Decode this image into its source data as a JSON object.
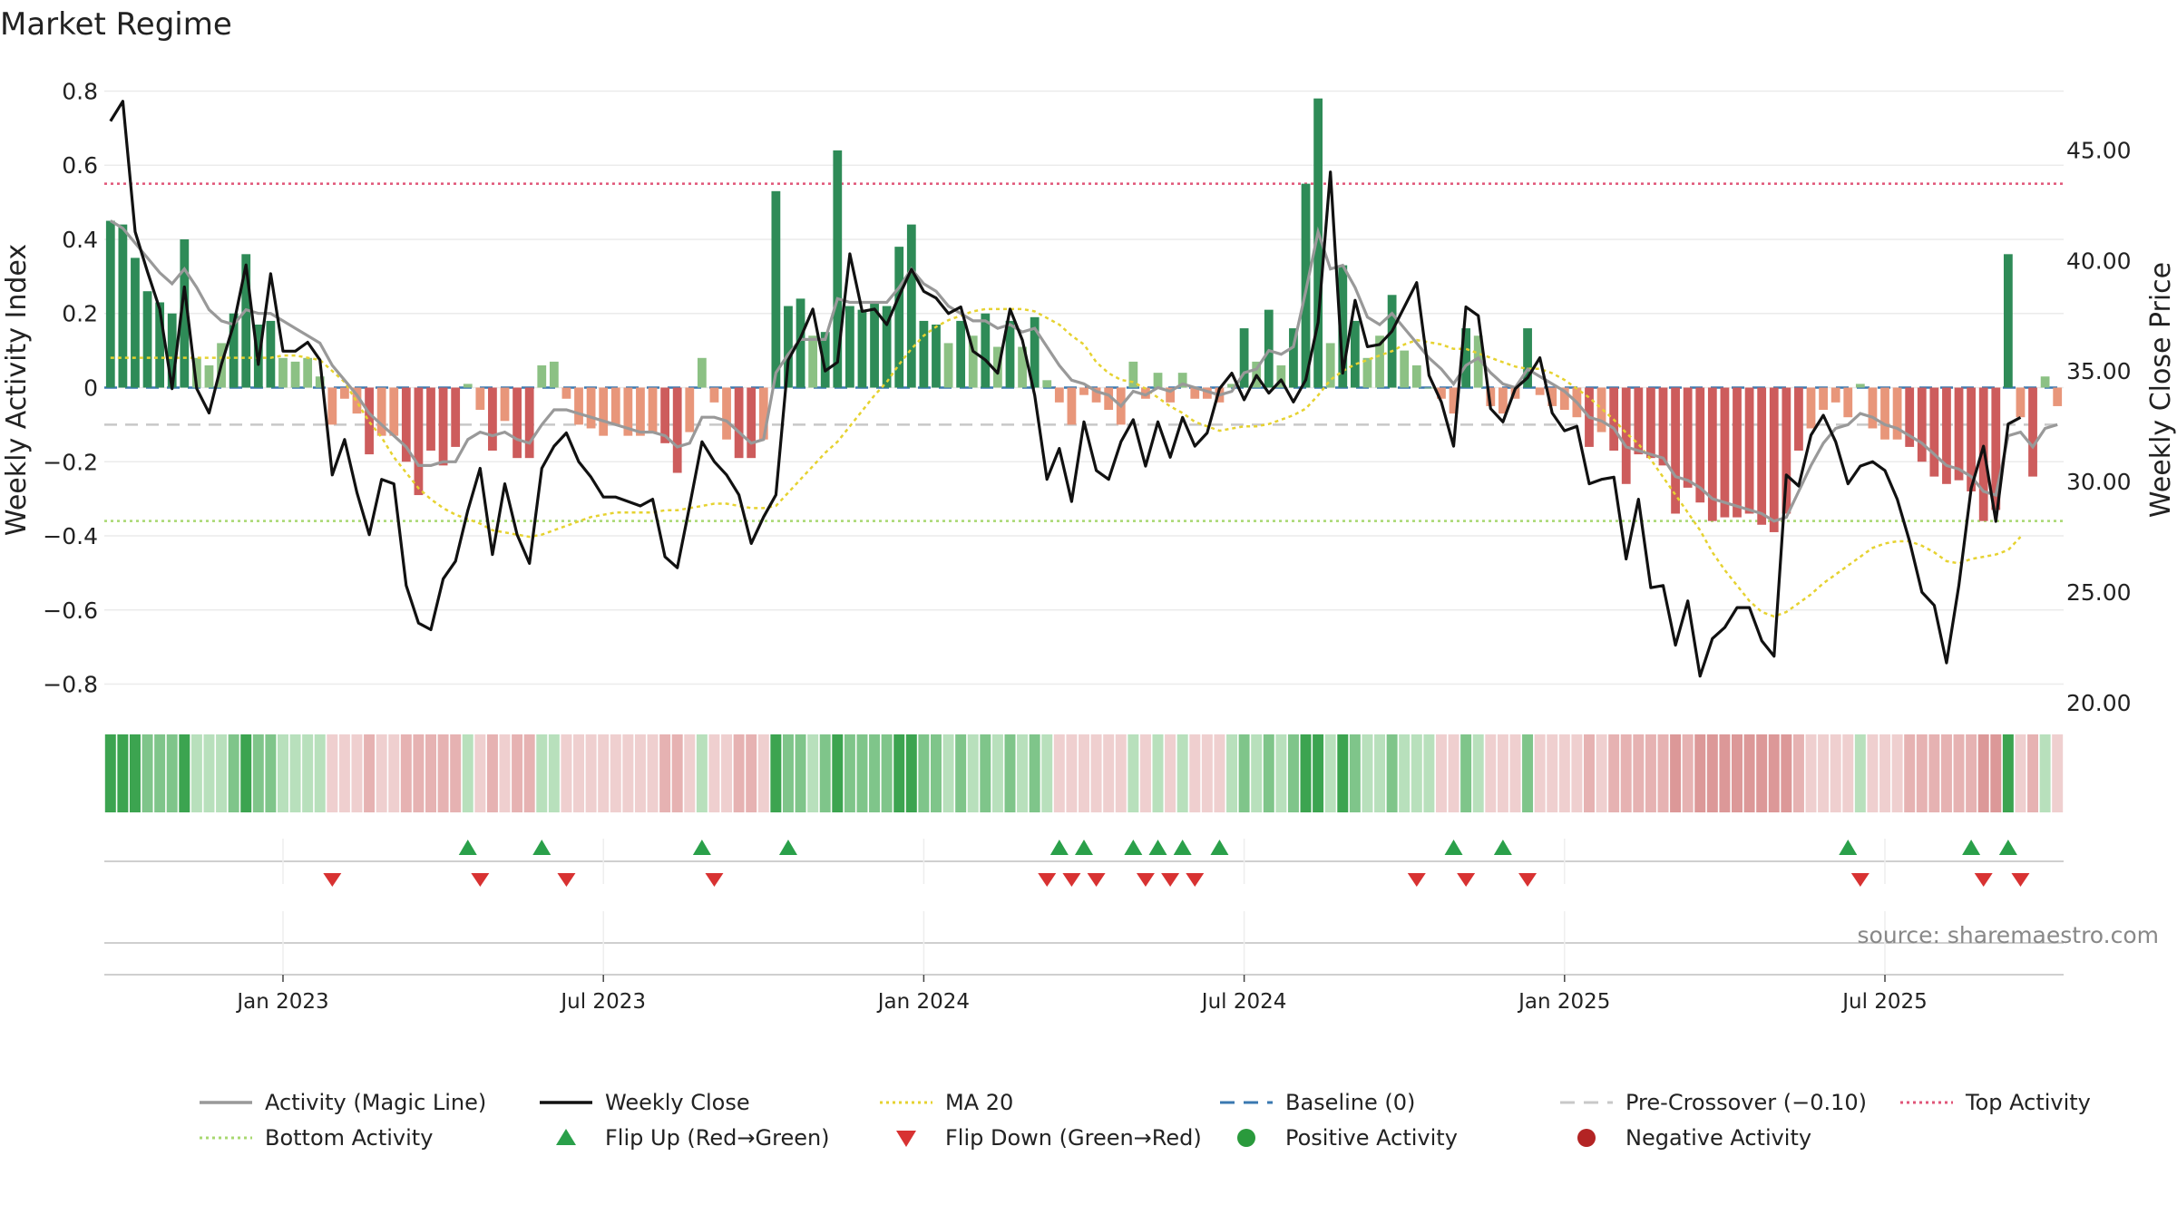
{
  "chart_data": {
    "type": "bar+line",
    "title": "Market Regime",
    "ylabel_left": "Weekly Activity Index",
    "ylabel_right": "Weekly Close Price",
    "ylim_left": [
      -0.85,
      0.85
    ],
    "ylim_right": [
      20,
      48.5
    ],
    "yticks_left": [
      "0.8",
      "0.6",
      "0.4",
      "0.2",
      "0",
      "−0.2",
      "−0.4",
      "−0.6",
      "−0.8"
    ],
    "yticks_left_values": [
      0.8,
      0.6,
      0.4,
      0.2,
      0,
      -0.2,
      -0.4,
      -0.6,
      -0.8
    ],
    "yticks_right": [
      "45.00",
      "40.00",
      "35.00",
      "30.00",
      "25.00",
      "20.00"
    ],
    "yticks_right_values": [
      45,
      40,
      35,
      30,
      25,
      20
    ],
    "xticks": [
      "Jan 2023",
      "Jul 2023",
      "Jan 2024",
      "Jul 2024",
      "Jan 2025",
      "Jul 2025"
    ],
    "xticks_week_index": [
      14,
      40,
      66,
      92,
      118,
      144
    ],
    "levels": {
      "top_activity": 0.55,
      "bottom_activity": -0.36,
      "pre_crossover": -0.1,
      "baseline": 0
    },
    "series": [
      {
        "name": "Weekly Activity Index",
        "kind": "bar",
        "values": [
          0.45,
          0.44,
          0.35,
          0.26,
          0.23,
          0.2,
          0.4,
          0.08,
          0.06,
          0.12,
          0.2,
          0.36,
          0.17,
          0.18,
          0.08,
          0.07,
          0.08,
          0.03,
          -0.1,
          -0.03,
          -0.07,
          -0.18,
          -0.13,
          -0.13,
          -0.2,
          -0.29,
          -0.17,
          -0.21,
          -0.16,
          0.01,
          -0.06,
          -0.17,
          -0.09,
          -0.19,
          -0.19,
          0.06,
          0.07,
          -0.03,
          -0.1,
          -0.11,
          -0.13,
          -0.1,
          -0.13,
          -0.13,
          -0.12,
          -0.15,
          -0.23,
          -0.12,
          0.08,
          -0.04,
          -0.14,
          -0.19,
          -0.19,
          -0.14,
          0.53,
          0.22,
          0.24,
          0.14,
          0.15,
          0.64,
          0.22,
          0.21,
          0.23,
          0.22,
          0.38,
          0.44,
          0.18,
          0.17,
          0.12,
          0.18,
          0.14,
          0.2,
          0.11,
          0.18,
          0.11,
          0.19,
          0.02,
          -0.04,
          -0.1,
          -0.02,
          -0.04,
          -0.06,
          -0.1,
          0.07,
          -0.03,
          0.04,
          -0.04,
          0.04,
          -0.03,
          -0.03,
          -0.04,
          0.01,
          0.16,
          0.07,
          0.21,
          0.06,
          0.16,
          0.55,
          0.78,
          0.12,
          0.33,
          0.18,
          0.08,
          0.14,
          0.25,
          0.1,
          0.06,
          0.0,
          -0.03,
          -0.07,
          0.16,
          0.14,
          -0.05,
          -0.07,
          -0.03,
          0.16,
          -0.02,
          -0.05,
          -0.06,
          -0.08,
          -0.16,
          -0.12,
          -0.17,
          -0.26,
          -0.18,
          -0.19,
          -0.21,
          -0.34,
          -0.27,
          -0.31,
          -0.36,
          -0.35,
          -0.35,
          -0.34,
          -0.37,
          -0.39,
          -0.34,
          -0.17,
          -0.11,
          -0.06,
          -0.04,
          -0.08,
          0.01,
          -0.11,
          -0.14,
          -0.14,
          -0.16,
          -0.2,
          -0.24,
          -0.26,
          -0.25,
          -0.28,
          -0.36,
          -0.33,
          0.36,
          -0.08,
          -0.24,
          0.03,
          -0.05
        ]
      },
      {
        "name": "Activity (Magic Line)",
        "kind": "line",
        "values": [
          0.45,
          0.43,
          0.39,
          0.35,
          0.31,
          0.28,
          0.32,
          0.27,
          0.21,
          0.18,
          0.17,
          0.21,
          0.2,
          0.2,
          0.18,
          0.16,
          0.14,
          0.12,
          0.06,
          0.02,
          -0.02,
          -0.07,
          -0.1,
          -0.13,
          -0.16,
          -0.21,
          -0.21,
          -0.2,
          -0.2,
          -0.14,
          -0.12,
          -0.13,
          -0.12,
          -0.14,
          -0.15,
          -0.1,
          -0.06,
          -0.06,
          -0.07,
          -0.08,
          -0.09,
          -0.1,
          -0.11,
          -0.12,
          -0.12,
          -0.13,
          -0.16,
          -0.15,
          -0.08,
          -0.08,
          -0.09,
          -0.12,
          -0.15,
          -0.14,
          0.04,
          0.09,
          0.13,
          0.13,
          0.13,
          0.24,
          0.23,
          0.23,
          0.23,
          0.23,
          0.27,
          0.32,
          0.28,
          0.26,
          0.22,
          0.2,
          0.18,
          0.18,
          0.16,
          0.17,
          0.15,
          0.16,
          0.11,
          0.06,
          0.02,
          0.01,
          -0.01,
          -0.02,
          -0.05,
          -0.01,
          -0.02,
          0.0,
          -0.01,
          0.01,
          0.0,
          -0.01,
          -0.02,
          -0.01,
          0.04,
          0.05,
          0.1,
          0.09,
          0.11,
          0.26,
          0.42,
          0.32,
          0.33,
          0.27,
          0.19,
          0.17,
          0.2,
          0.16,
          0.12,
          0.08,
          0.05,
          0.01,
          0.06,
          0.08,
          0.04,
          0.01,
          0.0,
          0.05,
          0.03,
          0.01,
          -0.01,
          -0.04,
          -0.08,
          -0.09,
          -0.11,
          -0.16,
          -0.17,
          -0.18,
          -0.19,
          -0.24,
          -0.25,
          -0.27,
          -0.3,
          -0.31,
          -0.32,
          -0.33,
          -0.34,
          -0.36,
          -0.35,
          -0.28,
          -0.21,
          -0.15,
          -0.11,
          -0.1,
          -0.07,
          -0.08,
          -0.1,
          -0.11,
          -0.13,
          -0.15,
          -0.18,
          -0.21,
          -0.22,
          -0.24,
          -0.28,
          -0.29,
          -0.13,
          -0.12,
          -0.16,
          -0.11,
          -0.1
        ]
      },
      {
        "name": "Weekly Close",
        "kind": "line",
        "axis": "right",
        "values": [
          46.3,
          47.2,
          41.3,
          39.5,
          37.8,
          34.2,
          38.8,
          34.2,
          33.1,
          35.3,
          37.1,
          39.8,
          35.3,
          39.4,
          35.9,
          35.9,
          36.3,
          35.5,
          30.3,
          31.9,
          29.5,
          27.6,
          30.1,
          29.9,
          25.3,
          23.6,
          23.3,
          25.6,
          26.4,
          28.7,
          30.6,
          26.7,
          29.9,
          27.6,
          26.3,
          30.6,
          31.6,
          32.2,
          30.9,
          30.2,
          29.3,
          29.3,
          29.1,
          28.9,
          29.2,
          26.6,
          26.1,
          28.9,
          31.8,
          30.9,
          30.3,
          29.4,
          27.2,
          28.4,
          29.4,
          35.5,
          36.5,
          37.8,
          35.0,
          35.4,
          40.3,
          37.7,
          37.8,
          37.1,
          38.4,
          39.6,
          38.6,
          38.3,
          37.6,
          37.9,
          35.9,
          35.5,
          34.9,
          37.8,
          36.4,
          33.9,
          30.1,
          31.5,
          29.1,
          32.7,
          30.5,
          30.1,
          31.8,
          32.8,
          30.7,
          32.7,
          31.1,
          32.9,
          31.6,
          32.2,
          34.2,
          34.9,
          33.7,
          34.8,
          34.0,
          34.6,
          33.6,
          34.6,
          37.2,
          44.0,
          34.9,
          38.2,
          36.1,
          36.2,
          36.8,
          37.9,
          39.0,
          34.8,
          33.6,
          31.6,
          37.9,
          37.5,
          33.3,
          32.7,
          34.2,
          34.7,
          35.6,
          33.1,
          32.3,
          32.5,
          29.9,
          30.1,
          30.2,
          26.5,
          29.2,
          25.2,
          25.3,
          22.6,
          24.6,
          21.2,
          22.9,
          23.4,
          24.3,
          24.3,
          22.8,
          22.1,
          30.3,
          29.8,
          32.1,
          33.0,
          31.8,
          29.9,
          30.7,
          30.9,
          30.5,
          29.2,
          27.3,
          25.0,
          24.4,
          21.8,
          25.3,
          29.7,
          31.6,
          28.2,
          32.6,
          32.9
        ]
      },
      {
        "name": "MA 20",
        "kind": "line",
        "axis": "right",
        "values": [
          35.6,
          35.6,
          35.6,
          35.6,
          35.6,
          35.6,
          35.6,
          35.6,
          35.6,
          35.6,
          35.6,
          35.6,
          35.6,
          35.6,
          35.7,
          35.7,
          35.6,
          35.5,
          35.0,
          34.5,
          33.6,
          32.7,
          32.0,
          31.1,
          30.4,
          29.7,
          29.2,
          28.8,
          28.5,
          28.3,
          28.1,
          27.8,
          27.7,
          27.6,
          27.5,
          27.6,
          27.8,
          28.0,
          28.2,
          28.4,
          28.5,
          28.6,
          28.6,
          28.6,
          28.6,
          28.7,
          28.7,
          28.8,
          28.9,
          29.0,
          29.0,
          28.9,
          28.8,
          28.8,
          28.9,
          29.5,
          30.1,
          30.7,
          31.3,
          31.8,
          32.5,
          33.2,
          33.9,
          34.5,
          35.3,
          36.0,
          36.6,
          37.0,
          37.3,
          37.5,
          37.7,
          37.8,
          37.8,
          37.8,
          37.8,
          37.7,
          37.4,
          37.1,
          36.6,
          36.2,
          35.4,
          34.9,
          34.6,
          34.5,
          34.2,
          33.8,
          33.4,
          33.1,
          32.7,
          32.5,
          32.3,
          32.4,
          32.5,
          32.5,
          32.6,
          32.8,
          33.0,
          33.3,
          33.9,
          34.6,
          35.0,
          35.3,
          35.5,
          35.7,
          35.9,
          36.2,
          36.4,
          36.3,
          36.2,
          36.0,
          36.0,
          35.8,
          35.6,
          35.4,
          35.2,
          35.1,
          35.1,
          34.9,
          34.6,
          34.2,
          33.8,
          33.3,
          32.8,
          32.2,
          31.7,
          31.0,
          30.2,
          29.4,
          28.6,
          27.8,
          26.8,
          26.0,
          25.3,
          24.6,
          24.1,
          23.9,
          24.1,
          24.5,
          24.9,
          25.4,
          25.8,
          26.2,
          26.6,
          27.0,
          27.2,
          27.3,
          27.3,
          27.1,
          26.8,
          26.4,
          26.3,
          26.5,
          26.6,
          26.7,
          26.9,
          27.5
        ]
      }
    ],
    "regime_strip": [
      0.45,
      0.44,
      0.35,
      0.26,
      0.23,
      0.2,
      0.4,
      0.08,
      0.06,
      0.12,
      0.2,
      0.36,
      0.17,
      0.18,
      0.08,
      0.07,
      0.08,
      0.03,
      -0.1,
      -0.03,
      -0.07,
      -0.18,
      -0.13,
      -0.13,
      -0.2,
      -0.29,
      -0.17,
      -0.21,
      -0.16,
      0.01,
      -0.06,
      -0.17,
      -0.09,
      -0.19,
      -0.19,
      0.06,
      0.07,
      -0.03,
      -0.1,
      -0.11,
      -0.13,
      -0.1,
      -0.13,
      -0.13,
      -0.12,
      -0.15,
      -0.23,
      -0.12,
      0.08,
      -0.04,
      -0.14,
      -0.19,
      -0.19,
      -0.14,
      0.53,
      0.22,
      0.24,
      0.14,
      0.15,
      0.64,
      0.22,
      0.21,
      0.23,
      0.22,
      0.38,
      0.44,
      0.18,
      0.17,
      0.12,
      0.18,
      0.14,
      0.2,
      0.11,
      0.18,
      0.11,
      0.19,
      0.02,
      -0.04,
      -0.1,
      -0.02,
      -0.04,
      -0.06,
      -0.1,
      0.07,
      -0.03,
      0.04,
      -0.04,
      0.04,
      -0.03,
      -0.03,
      -0.04,
      0.01,
      0.16,
      0.07,
      0.21,
      0.06,
      0.16,
      0.55,
      0.78,
      0.12,
      0.33,
      0.18,
      0.08,
      0.14,
      0.25,
      0.1,
      0.06,
      0.0,
      -0.03,
      -0.07,
      0.16,
      0.14,
      -0.05,
      -0.07,
      -0.03,
      0.16,
      -0.02,
      -0.05,
      -0.06,
      -0.08,
      -0.16,
      -0.12,
      -0.17,
      -0.26,
      -0.18,
      -0.19,
      -0.21,
      -0.34,
      -0.27,
      -0.31,
      -0.36,
      -0.35,
      -0.35,
      -0.34,
      -0.37,
      -0.39,
      -0.34,
      -0.17,
      -0.11,
      -0.06,
      -0.04,
      -0.08,
      0.01,
      -0.11,
      -0.14,
      -0.14,
      -0.16,
      -0.2,
      -0.24,
      -0.26,
      -0.25,
      -0.28,
      -0.36,
      -0.33,
      0.36,
      -0.08,
      -0.24,
      0.03,
      -0.05
    ],
    "flip_up_weeks": [
      29,
      35,
      48,
      55,
      77,
      79,
      83,
      85,
      87,
      90,
      109,
      113,
      141,
      151,
      154
    ],
    "flip_down_weeks": [
      18,
      30,
      37,
      49,
      76,
      78,
      80,
      84,
      86,
      88,
      106,
      110,
      115,
      142,
      152,
      155
    ],
    "legend": [
      {
        "label": "Activity (Magic Line)",
        "symbol": "line",
        "color": "#999999"
      },
      {
        "label": "Weekly Close",
        "symbol": "line",
        "color": "#111111"
      },
      {
        "label": "MA 20",
        "symbol": "dotted",
        "color": "#e6d230"
      },
      {
        "label": "Baseline (0)",
        "symbol": "dashed",
        "color": "#3a78b0"
      },
      {
        "label": "Pre-Crossover (−0.10)",
        "symbol": "dashed",
        "color": "#c8c8c8"
      },
      {
        "label": "Top Activity",
        "symbol": "dotted",
        "color": "#e05578"
      },
      {
        "label": "Bottom Activity",
        "symbol": "dotted",
        "color": "#a8d870"
      },
      {
        "label": "Flip Up (Red→Green)",
        "symbol": "triangle-up",
        "color": "#2aa04a"
      },
      {
        "label": "Flip Down (Green→Red)",
        "symbol": "triangle-down",
        "color": "#d83232"
      },
      {
        "label": "Positive Activity",
        "symbol": "circle",
        "color": "#2a9a3c"
      },
      {
        "label": "Negative Activity",
        "symbol": "circle",
        "color": "#b32424"
      }
    ],
    "source": "source: sharemaestro.com"
  },
  "colors": {
    "pos_strong": "#2e8b57",
    "pos_weak": "#8cc184",
    "neg_strong": "#cd5c5c",
    "neg_weak": "#e8967a",
    "grid": "#ebebeb"
  }
}
